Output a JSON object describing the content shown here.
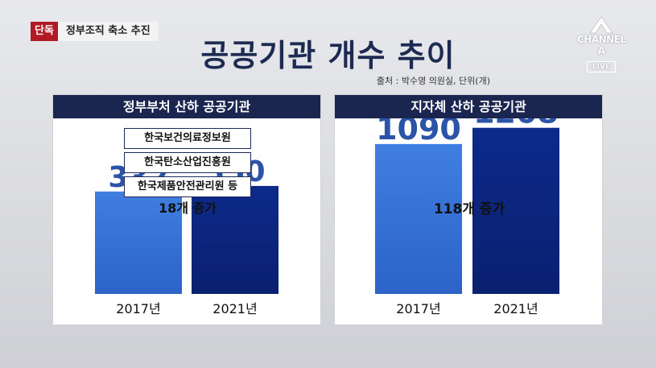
{
  "header": {
    "badge": "단독",
    "headline": "정부조직 축소 추진",
    "title": "공공기관 개수 추이",
    "source": "출처 : 박수영 의원실,  단위(개)"
  },
  "logo": {
    "name": "CHANNEL A",
    "live": "LIVE"
  },
  "colors": {
    "header_navy": "#1a2550",
    "bar_light": "#3f7fe0",
    "bar_dark": "#0d2a8a",
    "value_text": "#2b54a8"
  },
  "panels": {
    "left": {
      "header": "정부부처 산하 공공기관",
      "examples": [
        "한국보건의료정보원",
        "한국탄소산업진흥원",
        "한국제품안전관리원 등"
      ],
      "increase": "18개 증가"
    },
    "right": {
      "header": "지자체 산하 공공기관",
      "increase": "118개 증가"
    }
  },
  "chart_data": [
    {
      "type": "bar",
      "title": "정부부처 산하 공공기관",
      "categories": [
        "2017년",
        "2021년"
      ],
      "values": [
        332,
        350
      ],
      "value_labels": [
        "332",
        "350"
      ],
      "ylim": [
        0,
        1300
      ],
      "annotation": "18개 증가"
    },
    {
      "type": "bar",
      "title": "지자체 산하 공공기관",
      "categories": [
        "2017년",
        "2021년"
      ],
      "values": [
        1090,
        1208
      ],
      "value_labels": [
        "1090",
        "1208"
      ],
      "ylim": [
        0,
        1300
      ],
      "annotation": "118개 증가"
    }
  ]
}
